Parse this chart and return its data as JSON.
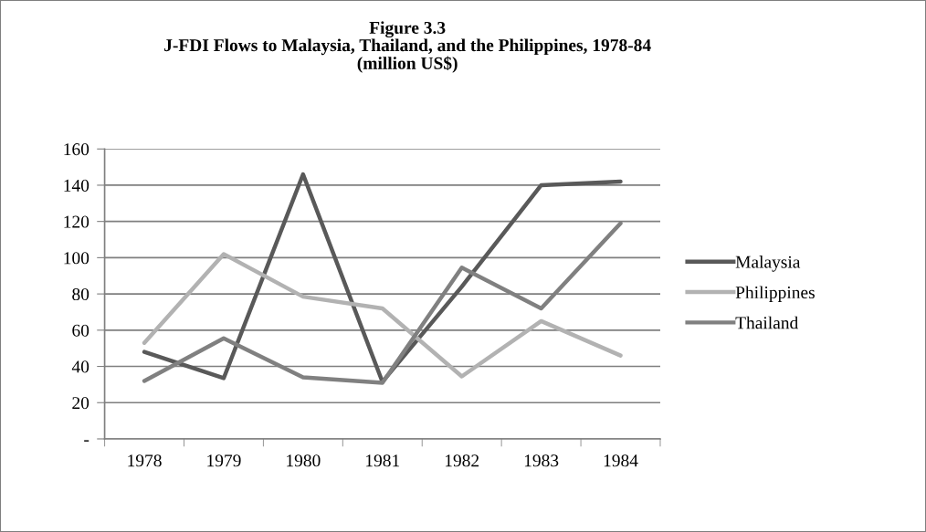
{
  "chart_data": {
    "type": "line",
    "title": "Figure 3.3\nJ-FDI Flows to Malaysia, Thailand, and the Philippines, 1978-84\n(million US$)",
    "categories": [
      "1978",
      "1979",
      "1980",
      "1981",
      "1982",
      "1983",
      "1984"
    ],
    "series": [
      {
        "name": "Malaysia",
        "color": "#595959",
        "values": [
          48,
          33.5,
          146,
          31.5,
          84,
          140,
          142
        ]
      },
      {
        "name": "Philippines",
        "color": "#b2b2b2",
        "values": [
          53,
          102,
          78.5,
          72,
          34.5,
          65,
          46
        ]
      },
      {
        "name": "Thailand",
        "color": "#808080",
        "values": [
          32,
          55.5,
          34,
          31,
          94.5,
          72,
          119
        ]
      }
    ],
    "ylim": [
      0,
      160
    ],
    "yticks": [
      {
        "value": 0,
        "label": "-"
      },
      20,
      40,
      60,
      80,
      100,
      120,
      140,
      160
    ],
    "grid": "y",
    "legend": "right",
    "marker": "none",
    "line_style": "solid"
  }
}
